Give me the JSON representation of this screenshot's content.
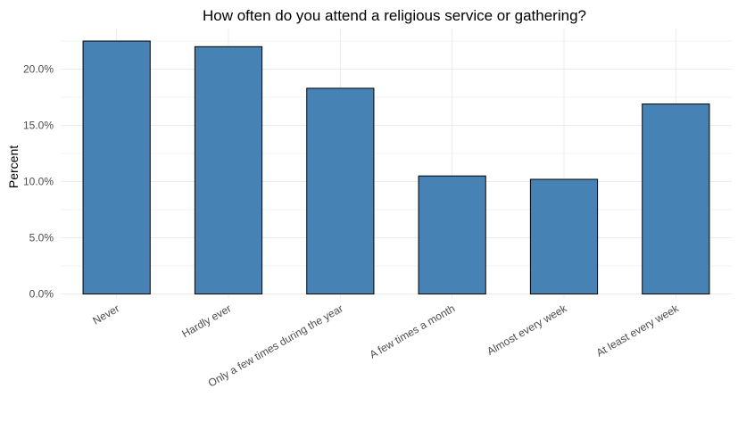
{
  "chart_data": {
    "type": "bar",
    "title": "How often do you attend a religious service or gathering?",
    "xlabel": "",
    "ylabel": "Percent",
    "categories": [
      "Never",
      "Hardly ever",
      "Only a few times during the year",
      "A few times a month",
      "Almost every week",
      "At least every week"
    ],
    "values": [
      22.5,
      22.0,
      18.3,
      10.5,
      10.2,
      16.9
    ],
    "ylim": [
      0,
      23.5
    ],
    "yticks": [
      0,
      5,
      10,
      15,
      20
    ],
    "ytick_labels": [
      "0.0%",
      "5.0%",
      "10.0%",
      "15.0%",
      "20.0%"
    ],
    "grid": true,
    "bar_color": "#4682b4"
  }
}
